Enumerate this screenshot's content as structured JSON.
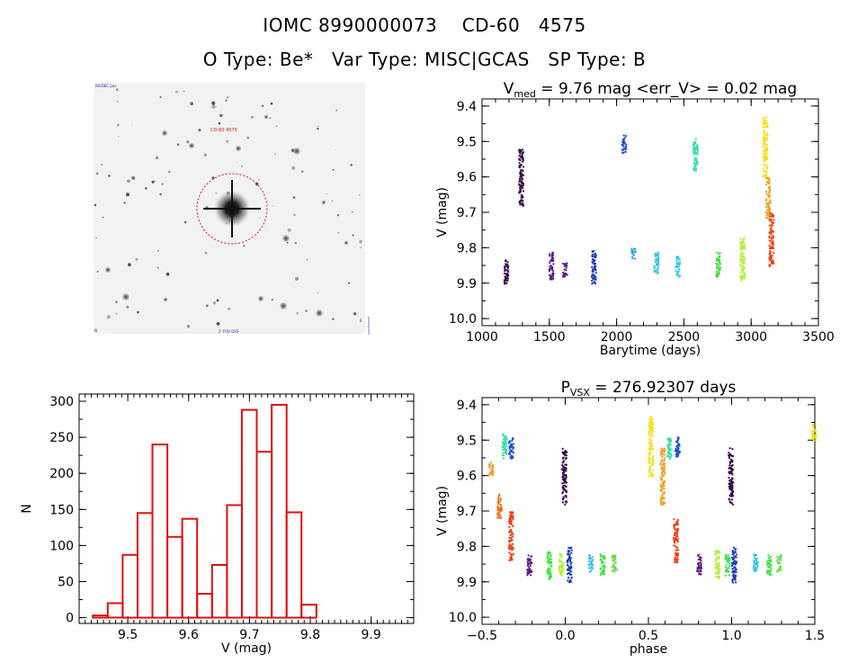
{
  "header": {
    "line1": "IOMC 8990000073    CD-60   4575",
    "line2": "O Type: Be*   Var Type: MISC|GCAS   SP Type: B"
  },
  "finder": {
    "label_topleft": "RA/DEC pos",
    "label_target": "CD-60 4575",
    "label_bottom": "2' FOV DSS",
    "label_bottomleft": "N",
    "label_bottomright": "E"
  },
  "chart_data": [
    {
      "id": "lightcurve",
      "type": "scatter",
      "title_main": "V",
      "title_sub": "med",
      "title_rest": " = 9.76 mag <err_V> = 0.02 mag",
      "xlabel": "Barytime (days)",
      "ylabel": "V (mag)",
      "xlim": [
        1000,
        3500
      ],
      "ylim": [
        10.02,
        9.38
      ],
      "xticks": [
        1000,
        1500,
        2000,
        2500,
        3000,
        3500
      ],
      "xtick_labels": [
        "1000",
        "1500",
        "2000",
        "2500",
        "3000",
        "3500"
      ],
      "yticks": [
        9.4,
        9.5,
        9.6,
        9.7,
        9.8,
        9.9,
        10.0
      ],
      "ytick_labels": [
        "9.4",
        "9.5",
        "9.6",
        "9.7",
        "9.8",
        "9.9",
        "10.0"
      ],
      "clusters": [
        {
          "x": 1175,
          "y": [
            9.83,
            9.9
          ],
          "color": "#3a0a4a"
        },
        {
          "x": 1285,
          "y": [
            9.52,
            9.68
          ],
          "color": "#3a0a4a"
        },
        {
          "x": 1510,
          "y": [
            9.81,
            9.89
          ],
          "color": "#5a1a8a"
        },
        {
          "x": 1610,
          "y": [
            9.84,
            9.88
          ],
          "color": "#5a1a8a"
        },
        {
          "x": 1825,
          "y": [
            9.8,
            9.9
          ],
          "color": "#1a3ab0"
        },
        {
          "x": 2050,
          "y": [
            9.48,
            9.53
          ],
          "color": "#2050d0"
        },
        {
          "x": 2120,
          "y": [
            9.8,
            9.83
          ],
          "color": "#30a0e0"
        },
        {
          "x": 2290,
          "y": [
            9.81,
            9.87
          ],
          "color": "#30c0e8"
        },
        {
          "x": 2450,
          "y": [
            9.82,
            9.88
          ],
          "color": "#30d0e0"
        },
        {
          "x": 2580,
          "y": [
            9.49,
            9.58
          ],
          "color": "#30e0a0"
        },
        {
          "x": 2750,
          "y": [
            9.81,
            9.88
          ],
          "color": "#40e040"
        },
        {
          "x": 2930,
          "y": [
            9.77,
            9.89
          ],
          "color": "#b0f030"
        },
        {
          "x": 3100,
          "y": [
            9.43,
            9.6
          ],
          "color": "#f0e020"
        },
        {
          "x": 3120,
          "y": [
            9.6,
            9.72
          ],
          "color": "#f0a020"
        },
        {
          "x": 3145,
          "y": [
            9.7,
            9.85
          ],
          "color": "#f04010"
        }
      ]
    },
    {
      "id": "histogram",
      "type": "bar",
      "xlabel": "V (mag)",
      "ylabel": "N",
      "xlim": [
        9.42,
        9.97
      ],
      "ylim": [
        -8,
        310
      ],
      "xticks": [
        9.5,
        9.6,
        9.7,
        9.8,
        9.9
      ],
      "xtick_labels": [
        "9.5",
        "9.6",
        "9.7",
        "9.8",
        "9.9"
      ],
      "yticks": [
        0,
        50,
        100,
        150,
        200,
        250,
        300
      ],
      "ytick_labels": [
        "0",
        "50",
        "100",
        "150",
        "200",
        "250",
        "300"
      ],
      "bin_start": 9.4425,
      "bin_width": 0.0245,
      "values": [
        3,
        20,
        87,
        145,
        240,
        112,
        137,
        33,
        73,
        156,
        288,
        230,
        295,
        146,
        18
      ],
      "color": "#dd1111"
    },
    {
      "id": "phased",
      "type": "scatter",
      "title_main": "P",
      "title_sub": "VSX",
      "title_rest": " = 276.92307 days",
      "xlabel": "phase",
      "ylabel": "V (mag)",
      "xlim": [
        -0.5,
        1.5
      ],
      "ylim": [
        10.02,
        9.38
      ],
      "xticks": [
        -0.5,
        0.0,
        0.5,
        1.0,
        1.5
      ],
      "xtick_labels": [
        "−0.5",
        "0.0",
        "0.5",
        "1.0",
        "1.5"
      ],
      "yticks": [
        9.4,
        9.5,
        9.6,
        9.7,
        9.8,
        9.9,
        10.0
      ],
      "ytick_labels": [
        "9.4",
        "9.5",
        "9.6",
        "9.7",
        "9.8",
        "9.9",
        "10.0"
      ],
      "clusters": [
        {
          "x": -0.01,
          "y": [
            9.52,
            9.68
          ],
          "color": "#3a0a4a"
        },
        {
          "x": -0.45,
          "y": [
            9.56,
            9.6
          ],
          "color": "#f0a020"
        },
        {
          "x": -0.4,
          "y": [
            9.65,
            9.72
          ],
          "color": "#f07010"
        },
        {
          "x": -0.33,
          "y": [
            9.7,
            9.84
          ],
          "color": "#f04010"
        },
        {
          "x": -0.37,
          "y": [
            9.48,
            9.55
          ],
          "color": "#30e0a0"
        },
        {
          "x": -0.33,
          "y": [
            9.49,
            9.55
          ],
          "color": "#2050d0"
        },
        {
          "x": -0.22,
          "y": [
            9.82,
            9.88
          ],
          "color": "#5a1a8a"
        },
        {
          "x": -0.1,
          "y": [
            9.81,
            9.89
          ],
          "color": "#40e040"
        },
        {
          "x": -0.03,
          "y": [
            9.82,
            9.88
          ],
          "color": "#b0f030"
        },
        {
          "x": 0.02,
          "y": [
            9.8,
            9.9
          ],
          "color": "#1a3ab0"
        },
        {
          "x": 0.15,
          "y": [
            9.82,
            9.87
          ],
          "color": "#30c0e8"
        },
        {
          "x": 0.22,
          "y": [
            9.82,
            9.88
          ],
          "color": "#40e040"
        },
        {
          "x": 0.29,
          "y": [
            9.82,
            9.87
          ],
          "color": "#60e040"
        },
        {
          "x": 0.51,
          "y": [
            9.43,
            9.6
          ],
          "color": "#f0e020"
        },
        {
          "x": 0.58,
          "y": [
            9.52,
            9.68
          ],
          "color": "#f0a020"
        },
        {
          "x": 0.66,
          "y": [
            9.72,
            9.85
          ],
          "color": "#f04010"
        },
        {
          "x": 0.62,
          "y": [
            9.49,
            9.55
          ],
          "color": "#30e0a0"
        },
        {
          "x": 0.67,
          "y": [
            9.49,
            9.55
          ],
          "color": "#2050d0"
        },
        {
          "x": 0.8,
          "y": [
            9.82,
            9.88
          ],
          "color": "#5a1a8a"
        },
        {
          "x": 0.99,
          "y": [
            9.52,
            9.68
          ],
          "color": "#3a0a4a"
        },
        {
          "x": 0.91,
          "y": [
            9.81,
            9.89
          ],
          "color": "#b0f030"
        },
        {
          "x": 0.97,
          "y": [
            9.82,
            9.88
          ],
          "color": "#40e040"
        },
        {
          "x": 1.01,
          "y": [
            9.8,
            9.9
          ],
          "color": "#1a3ab0"
        },
        {
          "x": 1.14,
          "y": [
            9.82,
            9.87
          ],
          "color": "#30c0e8"
        },
        {
          "x": 1.22,
          "y": [
            9.82,
            9.88
          ],
          "color": "#40e040"
        },
        {
          "x": 1.28,
          "y": [
            9.82,
            9.87
          ],
          "color": "#60e040"
        },
        {
          "x": 1.49,
          "y": [
            9.45,
            9.5
          ],
          "color": "#f0e020"
        }
      ]
    }
  ]
}
